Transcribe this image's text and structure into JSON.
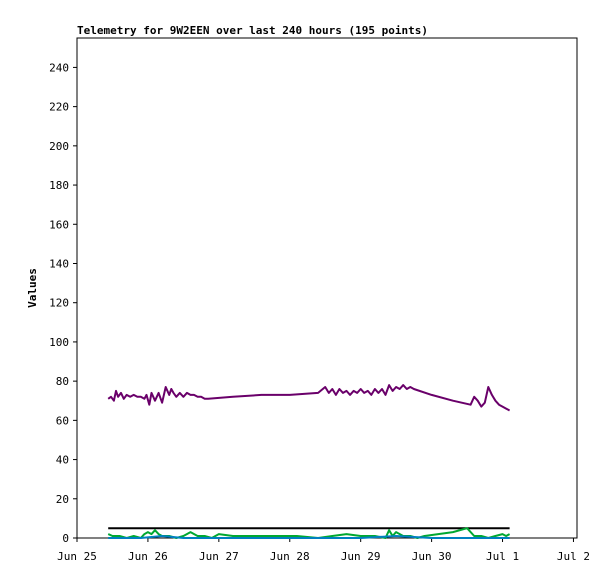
{
  "chart_data": {
    "type": "line",
    "title": "Telemetry for 9W2EEN over last 240 hours (195 points)",
    "xlabel": "",
    "ylabel": "Values",
    "ylim": [
      0,
      255
    ],
    "y_ticks": [
      0,
      20,
      40,
      60,
      80,
      100,
      120,
      140,
      160,
      180,
      200,
      220,
      240
    ],
    "x_range_days": [
      0,
      10
    ],
    "x_ticks": [
      {
        "day": 0,
        "label": "Jun 25"
      },
      {
        "day": 1,
        "label": "Jun 26"
      },
      {
        "day": 2,
        "label": "Jun 27"
      },
      {
        "day": 3,
        "label": "Jun 28"
      },
      {
        "day": 4,
        "label": "Jun 29"
      },
      {
        "day": 5,
        "label": "Jun 30"
      },
      {
        "day": 6,
        "label": "Jul 1"
      },
      {
        "day": 7,
        "label": "Jul 2"
      }
    ],
    "grid": false,
    "series": [
      {
        "color": "#6a006a",
        "x": [
          0.44,
          0.48,
          0.52,
          0.55,
          0.58,
          0.62,
          0.66,
          0.7,
          0.75,
          0.8,
          0.85,
          0.9,
          0.95,
          0.98,
          1.02,
          1.05,
          1.1,
          1.15,
          1.2,
          1.25,
          1.3,
          1.33,
          1.36,
          1.4,
          1.45,
          1.5,
          1.55,
          1.6,
          1.65,
          1.7,
          1.75,
          1.8,
          1.85,
          2.2,
          2.6,
          3.0,
          3.4,
          3.5,
          3.55,
          3.6,
          3.65,
          3.7,
          3.75,
          3.8,
          3.85,
          3.9,
          3.95,
          4.0,
          4.05,
          4.1,
          4.15,
          4.2,
          4.25,
          4.3,
          4.35,
          4.4,
          4.45,
          4.5,
          4.55,
          4.6,
          4.65,
          4.7,
          4.75,
          5.0,
          5.3,
          5.55,
          5.6,
          5.65,
          5.7,
          5.75,
          5.8,
          5.85,
          5.9,
          5.95,
          6.0,
          6.05,
          6.1
        ],
        "values": [
          71,
          72,
          70,
          75,
          72,
          74,
          71,
          73,
          72,
          73,
          72,
          72,
          71,
          73,
          68,
          74,
          70,
          74,
          69,
          77,
          73,
          76,
          74,
          72,
          74,
          72,
          74,
          73,
          73,
          72,
          72,
          71,
          71,
          72,
          73,
          73,
          74,
          77,
          74,
          76,
          73,
          76,
          74,
          75,
          73,
          75,
          74,
          76,
          74,
          75,
          73,
          76,
          74,
          76,
          73,
          78,
          75,
          77,
          76,
          78,
          76,
          77,
          76,
          73,
          70,
          68,
          72,
          70,
          67,
          69,
          77,
          73,
          70,
          68,
          67,
          66,
          65
        ]
      },
      {
        "color": "#000000",
        "x": [
          0.44,
          6.1
        ],
        "values": [
          5,
          5
        ]
      },
      {
        "color": "#00a832",
        "x": [
          0.44,
          0.5,
          0.6,
          0.7,
          0.8,
          0.9,
          0.95,
          1.0,
          1.05,
          1.1,
          1.15,
          1.2,
          1.3,
          1.4,
          1.5,
          1.6,
          1.7,
          1.8,
          1.9,
          2.0,
          2.2,
          2.5,
          2.8,
          3.1,
          3.4,
          3.6,
          3.8,
          4.0,
          4.2,
          4.35,
          4.4,
          4.45,
          4.5,
          4.6,
          4.7,
          4.8,
          4.9,
          5.3,
          5.5,
          5.6,
          5.7,
          5.8,
          5.9,
          6.0,
          6.05,
          6.1
        ],
        "values": [
          2,
          1,
          1,
          0,
          1,
          0,
          2,
          3,
          2,
          4,
          2,
          1,
          1,
          0,
          1,
          3,
          1,
          1,
          0,
          2,
          1,
          1,
          1,
          1,
          0,
          1,
          2,
          1,
          1,
          0,
          4,
          1,
          3,
          1,
          1,
          0,
          1,
          3,
          5,
          1,
          1,
          0,
          1,
          2,
          1,
          2
        ]
      },
      {
        "color": "#0080c0",
        "x": [
          0.44,
          0.6,
          0.9,
          1.2,
          1.5,
          2.0,
          2.5,
          3.0,
          3.5,
          4.0,
          4.5,
          5.0,
          5.5,
          6.1
        ],
        "values": [
          0,
          0,
          0,
          1,
          0,
          0,
          0,
          0,
          0,
          0,
          1,
          0,
          0,
          0
        ]
      }
    ]
  }
}
